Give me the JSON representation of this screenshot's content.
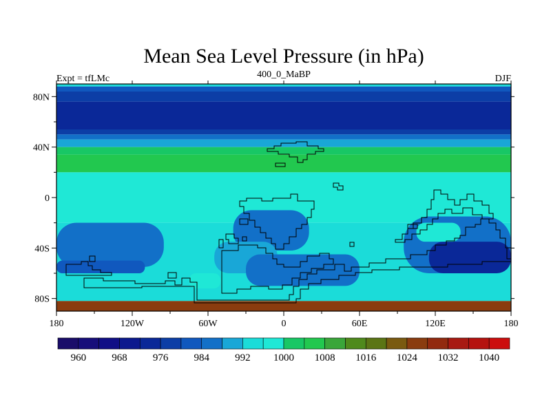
{
  "chart_data": {
    "type": "heatmap",
    "title": "Mean Sea Level Pressure (in hPa)",
    "left_string": "Expt = tfLMc",
    "center_string": "400_0_MaBP",
    "right_string": "DJF",
    "units": "hPa",
    "x_range": [
      -180,
      180
    ],
    "y_range": [
      -90,
      90
    ],
    "x_ticks": [
      {
        "value": -180,
        "label": "180"
      },
      {
        "value": -120,
        "label": "120W"
      },
      {
        "value": -60,
        "label": "60W"
      },
      {
        "value": 0,
        "label": "0"
      },
      {
        "value": 60,
        "label": "60E"
      },
      {
        "value": 120,
        "label": "120E"
      },
      {
        "value": 180,
        "label": "180"
      }
    ],
    "y_ticks": [
      {
        "value": 80,
        "label": "80N"
      },
      {
        "value": 40,
        "label": "40N"
      },
      {
        "value": 0,
        "label": "0"
      },
      {
        "value": -40,
        "label": "40S"
      },
      {
        "value": -80,
        "label": "80S"
      }
    ],
    "colorbar": {
      "bins": [
        {
          "lo": 956,
          "hi": 960,
          "color": "#1a0d6a"
        },
        {
          "lo": 960,
          "hi": 964,
          "color": "#170e7a"
        },
        {
          "lo": 964,
          "hi": 968,
          "color": "#110f86"
        },
        {
          "lo": 968,
          "hi": 972,
          "color": "#0c198e"
        },
        {
          "lo": 972,
          "hi": 976,
          "color": "#0a2898"
        },
        {
          "lo": 976,
          "hi": 980,
          "color": "#0c3ea6"
        },
        {
          "lo": 980,
          "hi": 984,
          "color": "#1058be"
        },
        {
          "lo": 984,
          "hi": 988,
          "color": "#1270c8"
        },
        {
          "lo": 988,
          "hi": 992,
          "color": "#19a7d7"
        },
        {
          "lo": 992,
          "hi": 996,
          "color": "#1bdcd9"
        },
        {
          "lo": 996,
          "hi": 1000,
          "color": "#1fe8d6"
        },
        {
          "lo": 1000,
          "hi": 1004,
          "color": "#18c765"
        },
        {
          "lo": 1004,
          "hi": 1008,
          "color": "#22c84f"
        },
        {
          "lo": 1008,
          "hi": 1012,
          "color": "#3aa63a"
        },
        {
          "lo": 1012,
          "hi": 1016,
          "color": "#4f8a1c"
        },
        {
          "lo": 1016,
          "hi": 1020,
          "color": "#5b7515"
        },
        {
          "lo": 1020,
          "hi": 1024,
          "color": "#7a5a10"
        },
        {
          "lo": 1024,
          "hi": 1028,
          "color": "#8a3c0f"
        },
        {
          "lo": 1028,
          "hi": 1032,
          "color": "#922a0f"
        },
        {
          "lo": 1032,
          "hi": 1036,
          "color": "#a81a12"
        },
        {
          "lo": 1036,
          "hi": 1040,
          "color": "#b5120f"
        },
        {
          "lo": 1040,
          "hi": 1044,
          "color": "#cc0e0e"
        }
      ],
      "labels": [
        "960",
        "968",
        "976",
        "984",
        "992",
        "1000",
        "1008",
        "1016",
        "1024",
        "1032",
        "1040"
      ]
    },
    "field_bands_by_latitude": [
      {
        "lat_from": 90,
        "lat_to": 88,
        "value": 994
      },
      {
        "lat_from": 88,
        "lat_to": 84,
        "value": 982
      },
      {
        "lat_from": 84,
        "lat_to": 76,
        "value": 978
      },
      {
        "lat_from": 76,
        "lat_to": 54,
        "value": 974
      },
      {
        "lat_from": 54,
        "lat_to": 50,
        "value": 978
      },
      {
        "lat_from": 50,
        "lat_to": 46,
        "value": 986
      },
      {
        "lat_from": 46,
        "lat_to": 40,
        "value": 990
      },
      {
        "lat_from": 40,
        "lat_to": 34,
        "value": 1002
      },
      {
        "lat_from": 34,
        "lat_to": 20,
        "value": 1006
      },
      {
        "lat_from": 20,
        "lat_to": -20,
        "value": 998
      },
      {
        "lat_from": -20,
        "lat_to": -82,
        "value": 994
      },
      {
        "lat_from": -82,
        "lat_to": -90,
        "value": 1024
      }
    ],
    "regional_features": [
      {
        "lon_range": [
          -180,
          -95
        ],
        "lat_range": [
          -20,
          -55
        ],
        "value": 986
      },
      {
        "lon_range": [
          -180,
          -110
        ],
        "lat_range": [
          -50,
          -60
        ],
        "value": 982
      },
      {
        "lon_range": [
          -40,
          20
        ],
        "lat_range": [
          -10,
          -42
        ],
        "value": 986
      },
      {
        "lon_range": [
          -55,
          -5
        ],
        "lat_range": [
          -35,
          -60
        ],
        "value": 990
      },
      {
        "lon_range": [
          95,
          180
        ],
        "lat_range": [
          -15,
          -60
        ],
        "value": 986
      },
      {
        "lon_range": [
          115,
          180
        ],
        "lat_range": [
          -35,
          -60
        ],
        "value": 974
      },
      {
        "lon_range": [
          -30,
          60
        ],
        "lat_range": [
          -45,
          -70
        ],
        "value": 986
      },
      {
        "lon_range": [
          -75,
          -50
        ],
        "lat_range": [
          -60,
          -72
        ],
        "value": 998
      },
      {
        "lon_range": [
          105,
          140
        ],
        "lat_range": [
          -20,
          -35
        ],
        "value": 998
      }
    ],
    "continent_outline_description": "black coastline contours (paleo-continents Gondwana and Laurussia)"
  }
}
